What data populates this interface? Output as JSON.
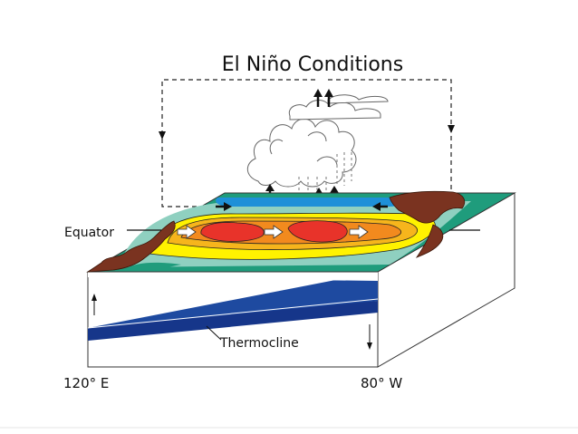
{
  "title": "El Niño Conditions",
  "labels": {
    "equator": "Equator",
    "thermocline": "Thermocline",
    "west_longitude": "120° E",
    "east_longitude": "80° W"
  },
  "colors": {
    "warm_core": "#e8332a",
    "warm": "#f28a1e",
    "mild": "#f6b51c",
    "yellow": "#fff200",
    "teal_light": "#8fd0c0",
    "teal": "#1f9c7c",
    "cool_blue": "#1e90d8",
    "thermocline_blue": "#1e4aa0",
    "deep_blue": "#16368a",
    "land": "#7a3320"
  },
  "icons": [
    "wind-arrow-icon",
    "current-arrow-icon",
    "cloud-icon",
    "rain-icon"
  ]
}
